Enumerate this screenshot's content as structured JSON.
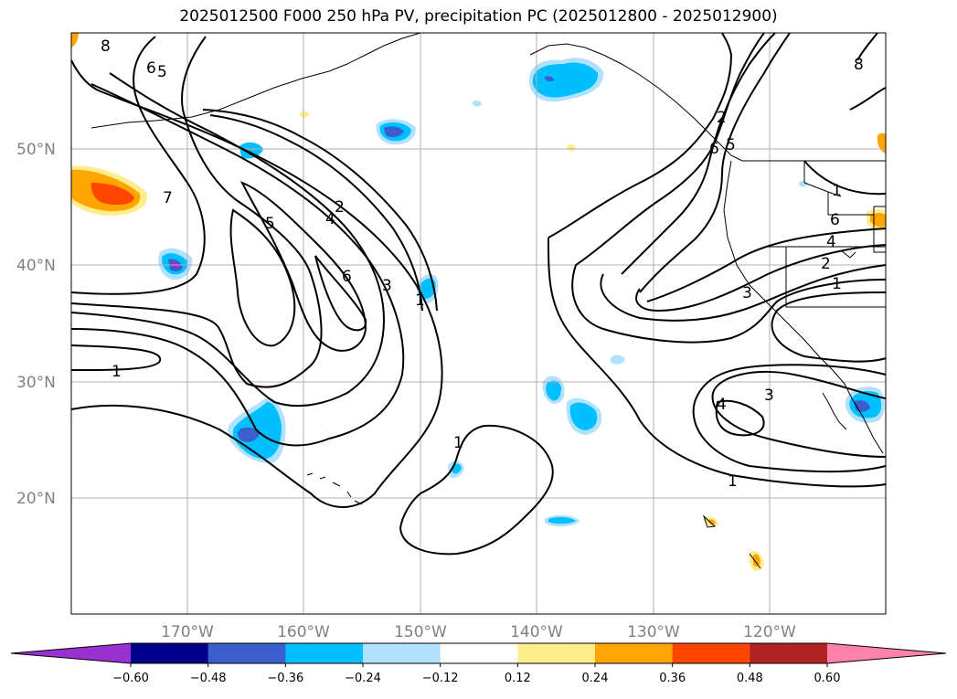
{
  "title": "2025012500 F000 250 hPa PV, precipitation PC (2025012800 - 2025012900)",
  "lat_labels": [
    "50°N",
    "40°N",
    "30°N",
    "20°N"
  ],
  "lon_labels": [
    "170°W",
    "160°W",
    "150°W",
    "140°W",
    "130°W",
    "120°W"
  ],
  "colorbar": {
    "ticks": [
      "−0.60",
      "−0.48",
      "−0.36",
      "−0.24",
      "−0.12",
      "0.12",
      "0.24",
      "0.36",
      "0.48",
      "0.60"
    ],
    "colors": [
      "#9b30d0",
      "#00008b",
      "#3a5fcd",
      "#00bfff",
      "#b0e2ff",
      "#ffffff",
      "#ffec8b",
      "#ffa500",
      "#ff4500",
      "#b22222",
      "#ff82ab"
    ]
  },
  "contour_labels": [
    "8",
    "6",
    "5",
    "7",
    "5",
    "4",
    "2",
    "3",
    "6",
    "1",
    "1",
    "1",
    "2",
    "5",
    "6",
    "1",
    "6",
    "4",
    "2",
    "1",
    "3",
    "4",
    "3",
    "1",
    "8"
  ],
  "colors": {
    "precip_blue": "#00bfff",
    "precip_light": "#b0e2ff",
    "precip_dark": "#3a5fcd",
    "precip_orange": "#ffa500",
    "precip_red": "#ff4500",
    "precip_yellow": "#ffec8b"
  }
}
